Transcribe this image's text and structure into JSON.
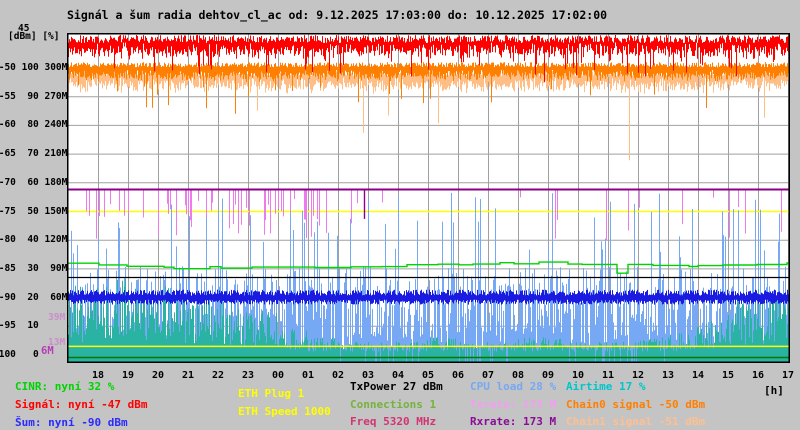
{
  "title": "Signál a šum radia dehtov_cl_ac od: 9.12.2025 17:03:00 do: 10.12.2025 17:02:00",
  "axis": {
    "top_label": "45",
    "unit_label": "[dBm] [%]",
    "hours_unit_label": "[h]",
    "rows": [
      " -50 100 300M",
      " -55  90 270M",
      " -60  80 240M",
      " -65  70 210M",
      " -70  60 180M",
      " -75  50 150M",
      " -80  40 120M",
      " -85  30  90M",
      " -90  20  60M",
      " -95  10     ",
      "-100   0     "
    ],
    "hour_ticks": [
      "18",
      "19",
      "20",
      "21",
      "22",
      "23",
      "00",
      "01",
      "02",
      "03",
      "04",
      "05",
      "06",
      "07",
      "08",
      "09",
      "10",
      "11",
      "12",
      "13",
      "14",
      "15",
      "16",
      "17"
    ],
    "value_markers": [
      {
        "id": "m39",
        "text": "39M",
        "color": "#c98fc9"
      },
      {
        "id": "m13",
        "text": "13M",
        "color": "#c98fc9"
      },
      {
        "id": "m6",
        "text": "6M",
        "color": "#b53eb5"
      }
    ]
  },
  "legend": {
    "items": [
      {
        "id": "cinr",
        "label": "CINR: nyní 32 %",
        "color": "#00d400"
      },
      {
        "id": "signal",
        "label": "Signál: nyní -47 dBm",
        "color": "#ff0000"
      },
      {
        "id": "noise",
        "label": "Šum: nyní -90 dBm",
        "color": "#2a2aff"
      },
      {
        "id": "eth_plug",
        "label": "ETH Plug 1",
        "color": "#ffff00"
      },
      {
        "id": "eth_speed",
        "label": "ETH Speed 1000",
        "color": "#ffff00"
      },
      {
        "id": "txpower",
        "label": "TxPower 27 dBm",
        "color": "#000000"
      },
      {
        "id": "connections",
        "label": "Connections 1",
        "color": "#76b23c"
      },
      {
        "id": "freq",
        "label": "Freq 5320 MHz",
        "color": "#d23472"
      },
      {
        "id": "cpu",
        "label": "CPU load 28 %",
        "color": "#77a8f3"
      },
      {
        "id": "txrate",
        "label": "Txrate: 173 M",
        "color": "#f0a0f0"
      },
      {
        "id": "rxrate",
        "label": "Rxrate: 173 M",
        "color": "#8b0a96"
      },
      {
        "id": "airtime",
        "label": "Airtime 17 %",
        "color": "#00c6cb"
      },
      {
        "id": "chain0",
        "label": "Chain0 signal -50 dBm",
        "color": "#ff7f00"
      },
      {
        "id": "chain1",
        "label": "Chain1 signal -51 dBm",
        "color": "#ffc090"
      }
    ]
  },
  "chart_data": {
    "type": "line",
    "title": "Signál a šum radia dehtov_cl_ac",
    "time_start": "9.12.2025 17:03:00",
    "time_end": "10.12.2025 17:02:00",
    "x_unit": "h",
    "x_ticks": [
      "18",
      "19",
      "20",
      "21",
      "22",
      "23",
      "00",
      "01",
      "02",
      "03",
      "04",
      "05",
      "06",
      "07",
      "08",
      "09",
      "10",
      "11",
      "12",
      "13",
      "14",
      "15",
      "16",
      "17"
    ],
    "y_axes": {
      "dbm": {
        "label": "[dBm]",
        "ticks": [
          -50,
          -55,
          -60,
          -65,
          -70,
          -75,
          -80,
          -85,
          -90,
          -95,
          -100
        ],
        "top_tick": -45
      },
      "pct": {
        "label": "[%]",
        "ticks": [
          100,
          90,
          80,
          70,
          60,
          50,
          40,
          30,
          20,
          10,
          0
        ]
      },
      "rate_m": {
        "label": "M",
        "ticks": [
          300,
          270,
          240,
          210,
          180,
          150,
          120,
          90,
          60
        ]
      }
    },
    "grid": true,
    "series": [
      {
        "id": "signal",
        "name": "Signál",
        "axis": "dbm",
        "color": "#ff0000",
        "style": "noisy_band",
        "current": -47,
        "band": [
          -49,
          -45.5
        ],
        "dips_to": -52,
        "dip_rate": 0.07
      },
      {
        "id": "chain0",
        "name": "Chain0 signal",
        "axis": "dbm",
        "color": "#ff7f00",
        "style": "noisy_band",
        "current": -50,
        "band": [
          -52,
          -49
        ],
        "dips_to": -56,
        "dip_rate": 0.03
      },
      {
        "id": "chain1",
        "name": "Chain1 signal",
        "axis": "dbm",
        "color": "#ffbe86",
        "style": "noisy_band",
        "current": -51,
        "band": [
          -53.5,
          -50
        ],
        "dips_to": -64,
        "dip_rate": 0.02
      },
      {
        "id": "noise",
        "name": "Šum",
        "axis": "dbm",
        "color": "#1a1ae0",
        "style": "noisy_band",
        "current": -90,
        "band": [
          -92,
          -88
        ]
      },
      {
        "id": "cinr",
        "name": "CINR",
        "axis": "pct",
        "color": "#00d400",
        "style": "step_line",
        "current": 32,
        "range": [
          29,
          33
        ]
      },
      {
        "id": "txpower",
        "name": "TxPower",
        "axis": "pct",
        "color": "#000000",
        "style": "hline",
        "value": 27
      },
      {
        "id": "rxrate",
        "name": "Rxrate",
        "axis": "rate_m",
        "color": "#8b008b",
        "style": "hline_with_dips",
        "value": 173,
        "dips_to": 135,
        "dip_rate": 0.005
      },
      {
        "id": "txrate",
        "name": "Txrate",
        "axis": "rate_m",
        "color": "#ee7bee",
        "style": "down_spikes",
        "base": 173,
        "spike_range": [
          120,
          165
        ],
        "density_hours_18_02": 0.2,
        "density_rest": 0.045
      },
      {
        "id": "eth_speed_ref",
        "name": "ETH Speed reference",
        "axis": "rate_m",
        "color": "#ffff00",
        "style": "hline",
        "value": 150
      },
      {
        "id": "cpu",
        "name": "CPU load",
        "axis": "pct",
        "color": "#77a8f3",
        "style": "area_spikes",
        "current": 28,
        "range": [
          2,
          57
        ]
      },
      {
        "id": "airtime",
        "name": "Airtime",
        "axis": "pct",
        "color": "#2ab3a3",
        "style": "area_spikes",
        "current": 17,
        "hourly_approx": [
          16,
          17,
          15,
          16,
          14,
          12,
          10,
          6,
          4,
          3,
          3,
          3,
          4,
          3,
          3,
          4,
          4,
          3,
          3,
          4,
          5,
          8,
          13,
          15
        ]
      },
      {
        "id": "eth_plug_ref",
        "name": "ETH Plug reference",
        "axis": "rate_m",
        "color": "#ffff00",
        "style": "hline",
        "value": 9
      },
      {
        "id": "connections_ref",
        "name": "Connections reference",
        "axis": "rate_m",
        "color": "#007800",
        "style": "hline",
        "value": 1
      }
    ],
    "value_markers": [
      {
        "text": "39M",
        "value_m": 39
      },
      {
        "text": "13M",
        "value_m": 13
      },
      {
        "text": "6M",
        "value_m": 6
      }
    ]
  }
}
